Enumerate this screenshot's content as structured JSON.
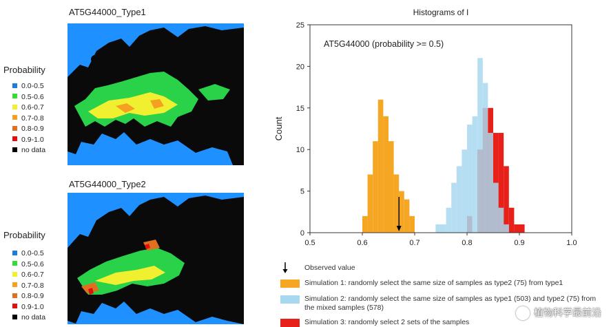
{
  "left_panel": {
    "maps": [
      {
        "title": "AT5G44000_Type1"
      },
      {
        "title": "AT5G44000_Type2"
      }
    ],
    "legend_title": "Probability",
    "legend_items": [
      {
        "label": "0.0-0.5",
        "color": "#1e7be0"
      },
      {
        "label": "0.5-0.6",
        "color": "#33dd33"
      },
      {
        "label": "0.6-0.7",
        "color": "#f0f030"
      },
      {
        "label": "0.7-0.8",
        "color": "#f5a020"
      },
      {
        "label": "0.8-0.9",
        "color": "#e07020"
      },
      {
        "label": "0.9-1.0",
        "color": "#e01010"
      },
      {
        "label": "no data",
        "color": "#000000"
      }
    ],
    "colors": {
      "ocean": "#1e90ff",
      "land_nodata": "#0a0a0a"
    }
  },
  "chart_data": {
    "type": "histogram",
    "title": "Histograms of I",
    "xlabel": "",
    "ylabel": "Count",
    "xlim": [
      0.5,
      1.0
    ],
    "ylim": [
      0,
      25
    ],
    "xticks": [
      0.5,
      0.6,
      0.7,
      0.8,
      0.9,
      1.0
    ],
    "yticks": [
      0,
      5,
      10,
      15,
      20,
      25
    ],
    "annotation": "AT5G44000 (probability >= 0.5)",
    "bin_width": 0.01,
    "observed_value": 0.67,
    "series": [
      {
        "name": "Simulation 1: randomly select the same size of samples as type2 (75) from type1",
        "color": "#f5a623",
        "opacity": 1,
        "bins_start": 0.6,
        "values": [
          2,
          7,
          11,
          16,
          14,
          11,
          7,
          5,
          4,
          2
        ]
      },
      {
        "name": "Simulation 3: randomly select 2 sets of the samples",
        "color": "#e8201a",
        "opacity": 1,
        "bins_start": 0.8,
        "values": [
          2,
          0,
          10,
          15,
          15,
          12,
          12,
          8,
          3,
          1,
          1
        ]
      },
      {
        "name": "Simulation 2: randomly select the same size of samples as type1 (503) and type2 (75) from the mixed samples (578)",
        "color": "#a8d8f0",
        "opacity": 0.85,
        "bins_start": 0.74,
        "values": [
          1,
          1,
          3,
          6,
          8,
          10,
          13,
          14,
          21,
          18,
          12,
          6,
          3,
          1
        ]
      }
    ],
    "key": {
      "observed_label": "Observed value",
      "entries": [
        {
          "color": "#f5a623",
          "label": "Simulation 1: randomly select the same size of samples as type2 (75) from type1"
        },
        {
          "color": "#a8d8f0",
          "label": "Simulation 2: randomly select the same size of samples as type1 (503) and type2 (75) from the mixed samples (578)"
        },
        {
          "color": "#e8201a",
          "label": "Simulation 3: randomly select 2 sets of the samples"
        }
      ]
    }
  },
  "watermark": {
    "text": "植物科学最前沿"
  }
}
